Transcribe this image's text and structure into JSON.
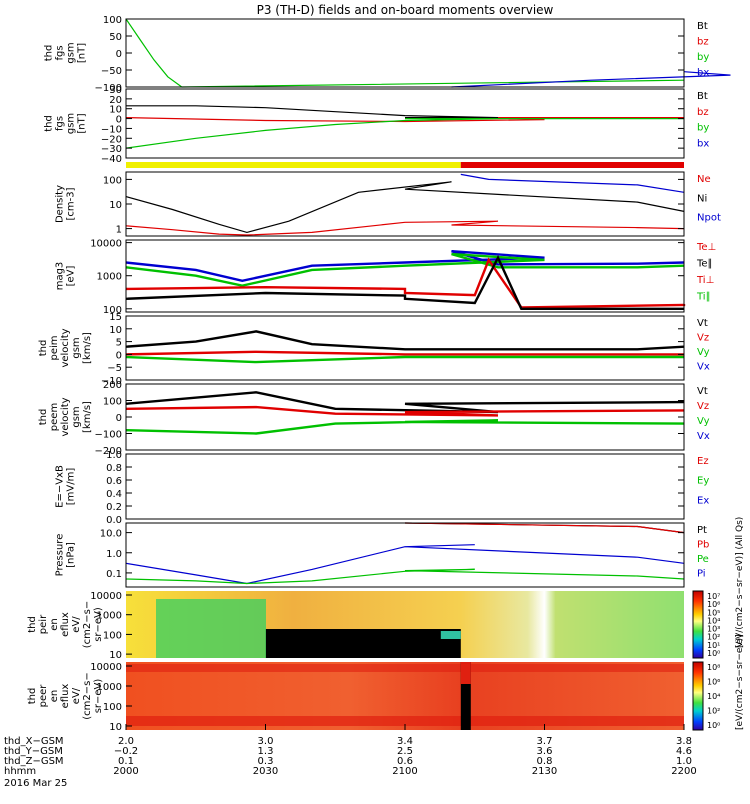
{
  "title": "P3 (TH-D) fields and on-board moments overview",
  "chart_data": [
    {
      "type": "line",
      "panel": "fgs_gsm",
      "ylabel": [
        "thd",
        "fgs",
        "gsm",
        "[nT]"
      ],
      "yticks": [
        "100",
        "50",
        "0",
        "−50",
        "−100"
      ],
      "ylim": [
        -100,
        100
      ],
      "legend": [
        {
          "label": "Bt",
          "color": "#000000"
        },
        {
          "label": "bz",
          "color": "#e00000"
        },
        {
          "label": "by",
          "color": "#00c000"
        },
        {
          "label": "bx",
          "color": "#0000d0"
        }
      ],
      "series": [
        {
          "color": "#00c000",
          "x": [
            2000,
            2003,
            2006,
            2009,
            2012,
            2200
          ],
          "y": [
            100,
            40,
            -20,
            -70,
            -100,
            -80
          ]
        },
        {
          "color": "#0000d0",
          "x": [
            2110,
            2140,
            2170,
            2200
          ],
          "y": [
            -100,
            -80,
            -65,
            -55
          ]
        }
      ]
    },
    {
      "type": "line",
      "panel": "fgs_gsm_zoom",
      "ylabel": [
        "thd",
        "fgs",
        "gsm",
        "[nT]"
      ],
      "yticks": [
        "30",
        "20",
        "10",
        "0",
        "−10",
        "−20",
        "−30",
        "−40"
      ],
      "ylim": [
        -40,
        30
      ],
      "legend": [
        {
          "label": "Bt",
          "color": "#000000"
        },
        {
          "label": "bz",
          "color": "#e00000"
        },
        {
          "label": "by",
          "color": "#00c000"
        },
        {
          "label": "bx",
          "color": "#0000d0"
        }
      ],
      "series": [
        {
          "color": "#000000",
          "x": [
            2000,
            2015,
            2030,
            2045,
            2060,
            2080,
            2100,
            2150,
            2200
          ],
          "y": [
            13,
            13,
            11,
            7,
            3,
            1,
            1,
            1,
            1
          ]
        },
        {
          "color": "#e00000",
          "x": [
            2000,
            2030,
            2060,
            2090,
            2120,
            2160,
            2200
          ],
          "y": [
            1,
            -2,
            -3,
            -1,
            1,
            1,
            1
          ]
        },
        {
          "color": "#00c000",
          "x": [
            2000,
            2015,
            2030,
            2045,
            2060,
            2080,
            2100,
            2150,
            2200
          ],
          "y": [
            -30,
            -20,
            -12,
            -6,
            -2,
            0,
            0,
            0,
            0
          ]
        }
      ]
    },
    {
      "type": "line",
      "panel": "density",
      "ylabel": [
        "Density",
        "[cm-3]"
      ],
      "yticks": [
        "100",
        "10",
        "1"
      ],
      "ylim": [
        0.5,
        200
      ],
      "yscale": "log",
      "legend": [
        {
          "label": "Ne",
          "color": "#e00000"
        },
        {
          "label": "Ni",
          "color": "#000000"
        },
        {
          "label": "Npot",
          "color": "#0000d0"
        }
      ],
      "series": [
        {
          "color": "#000000",
          "x": [
            2000,
            2010,
            2020,
            2026,
            2035,
            2050,
            2070,
            2100,
            2150,
            2200
          ],
          "y": [
            20,
            6,
            1.5,
            0.7,
            2,
            30,
            80,
            40,
            12,
            5
          ]
        },
        {
          "color": "#e00000",
          "x": [
            2000,
            2010,
            2020,
            2026,
            2040,
            2060,
            2080,
            2110,
            2150,
            2200
          ],
          "y": [
            1.3,
            0.9,
            0.6,
            0.55,
            0.7,
            1.8,
            2.0,
            1.4,
            1.1,
            1.0
          ]
        },
        {
          "color": "#0000d0",
          "x": [
            2112,
            2118,
            2150,
            2200
          ],
          "y": [
            160,
            100,
            60,
            30
          ]
        }
      ]
    },
    {
      "type": "line",
      "panel": "moments_temperature",
      "ylabel": [
        "mag3",
        "[eV]"
      ],
      "yticks": [
        "10000",
        "1000",
        "100"
      ],
      "ylim": [
        80,
        12000
      ],
      "yscale": "log",
      "legend": [
        {
          "label": "Te⊥",
          "color": "#e00000"
        },
        {
          "label": "Te∥",
          "color": "#000000"
        },
        {
          "label": "Ti⊥",
          "color": "#e00000"
        },
        {
          "label": "Ti∥",
          "color": "#00c000"
        }
      ],
      "series": [
        {
          "color": "#0000d0",
          "x": [
            2000,
            2015,
            2025,
            2040,
            2060,
            2090,
            2110,
            2120,
            2150,
            2200
          ],
          "y": [
            2500,
            1500,
            700,
            2000,
            2500,
            3500,
            5500,
            2200,
            2300,
            2500
          ]
        },
        {
          "color": "#00c000",
          "x": [
            2000,
            2015,
            2025,
            2040,
            2060,
            2090,
            2110,
            2120,
            2150,
            2200
          ],
          "y": [
            1800,
            1000,
            500,
            1500,
            2000,
            3000,
            4500,
            1800,
            1800,
            2000
          ]
        },
        {
          "color": "#e00000",
          "x": [
            2000,
            2030,
            2060,
            2100,
            2115,
            2118,
            2125,
            2160,
            2200
          ],
          "y": [
            400,
            450,
            400,
            300,
            260,
            3000,
            110,
            130,
            140
          ]
        },
        {
          "color": "#000000",
          "x": [
            2000,
            2030,
            2060,
            2100,
            2115,
            2120,
            2125,
            2160,
            2200
          ],
          "y": [
            200,
            300,
            250,
            200,
            150,
            3500,
            100,
            100,
            100
          ]
        }
      ]
    },
    {
      "type": "line",
      "panel": "peim_velocity",
      "ylabel": [
        "thd",
        "peim",
        "velocity",
        "gsm",
        "[km/s]"
      ],
      "yticks": [
        "15",
        "10",
        "5",
        "0",
        "−5",
        "−10"
      ],
      "ylim": [
        -10,
        15
      ],
      "legend": [
        {
          "label": "Vt",
          "color": "#000000"
        },
        {
          "label": "Vz",
          "color": "#e00000"
        },
        {
          "label": "Vy",
          "color": "#00c000"
        },
        {
          "label": "Vx",
          "color": "#0000d0"
        }
      ],
      "series": [
        {
          "color": "#000000",
          "x": [
            2000,
            2015,
            2028,
            2040,
            2060,
            2100,
            2150,
            2200
          ],
          "y": [
            3,
            5,
            9,
            4,
            2,
            2,
            2,
            3
          ]
        },
        {
          "color": "#e00000",
          "x": [
            2000,
            2028,
            2060,
            2200
          ],
          "y": [
            0,
            1,
            0,
            0
          ]
        },
        {
          "color": "#00c000",
          "x": [
            2000,
            2028,
            2060,
            2200
          ],
          "y": [
            -1,
            -3,
            -1,
            -1
          ]
        }
      ]
    },
    {
      "type": "line",
      "panel": "peem_velocity",
      "ylabel": [
        "thd",
        "peem",
        "velocity",
        "gsm",
        "[km/s]"
      ],
      "yticks": [
        "200",
        "100",
        "0",
        "−100",
        "−200"
      ],
      "ylim": [
        -200,
        200
      ],
      "legend": [
        {
          "label": "Vt",
          "color": "#000000"
        },
        {
          "label": "Vz",
          "color": "#e00000"
        },
        {
          "label": "Vy",
          "color": "#00c000"
        },
        {
          "label": "Vx",
          "color": "#0000d0"
        }
      ],
      "series": [
        {
          "color": "#000000",
          "x": [
            2000,
            2028,
            2045,
            2080,
            2100,
            2200
          ],
          "y": [
            80,
            150,
            50,
            30,
            80,
            90
          ]
        },
        {
          "color": "#e00000",
          "x": [
            2000,
            2028,
            2045,
            2080,
            2100,
            2200
          ],
          "y": [
            50,
            60,
            20,
            10,
            30,
            40
          ]
        },
        {
          "color": "#00c000",
          "x": [
            2000,
            2028,
            2045,
            2080,
            2100,
            2200
          ],
          "y": [
            -80,
            -100,
            -40,
            -20,
            -30,
            -40
          ]
        }
      ]
    },
    {
      "type": "line",
      "panel": "efield",
      "ylabel": [
        "E=−VxB",
        "[mV/m]"
      ],
      "yticks": [
        "1.0",
        "0.8",
        "0.6",
        "0.4",
        "0.2",
        "0.0"
      ],
      "ylim": [
        0,
        1
      ],
      "legend": [
        {
          "label": "Ez",
          "color": "#e00000"
        },
        {
          "label": "Ey",
          "color": "#00c000"
        },
        {
          "label": "Ex",
          "color": "#0000d0"
        }
      ],
      "series": []
    },
    {
      "type": "line",
      "panel": "pressure",
      "ylabel": [
        "Pressure",
        "[nPa]"
      ],
      "yticks": [
        "10.0",
        "1.0",
        "0.1"
      ],
      "ylim": [
        0.02,
        30
      ],
      "yscale": "log",
      "legend": [
        {
          "label": "Pt",
          "color": "#000000"
        },
        {
          "label": "Pb",
          "color": "#e00000"
        },
        {
          "label": "Pe",
          "color": "#00c000"
        },
        {
          "label": "Pi",
          "color": "#0000d0"
        }
      ],
      "series": [
        {
          "color": "#0000d0",
          "x": [
            2000,
            2015,
            2026,
            2040,
            2060,
            2075,
            2100,
            2150,
            2200
          ],
          "y": [
            0.3,
            0.08,
            0.03,
            0.15,
            2.0,
            2.5,
            2.0,
            0.6,
            0.3
          ]
        },
        {
          "color": "#00c000",
          "x": [
            2000,
            2015,
            2026,
            2040,
            2060,
            2075,
            2100,
            2150,
            2200
          ],
          "y": [
            0.05,
            0.04,
            0.03,
            0.04,
            0.12,
            0.15,
            0.13,
            0.07,
            0.05
          ]
        },
        {
          "color": "#000000",
          "x": [
            2100,
            2150,
            2200
          ],
          "y": [
            30,
            20,
            10
          ]
        },
        {
          "color": "#e00000",
          "x": [
            2100,
            2150,
            2200
          ],
          "y": [
            30,
            20,
            10
          ]
        }
      ]
    },
    {
      "type": "heatmap",
      "panel": "peir_en_eflux",
      "ylabel": [
        "thd",
        "peir",
        "en",
        "eflux",
        "eV/",
        "(cm2−s−",
        "sr−eV)"
      ],
      "yticks": [
        "10000",
        "1000",
        "100",
        "10"
      ],
      "yscale": "log",
      "colorbar_ticks": [
        "10⁷",
        "10⁶",
        "10⁵",
        "10⁴",
        "10³",
        "10²",
        "10¹",
        "10⁰"
      ],
      "colorbar_label": "[eV/(cm2−s−sr−eV)] (All Qs)"
    },
    {
      "type": "heatmap",
      "panel": "peer_en_eflux",
      "ylabel": [
        "thd",
        "peer",
        "en",
        "eflux",
        "eV/",
        "(cm2−s−",
        "sr−eV)"
      ],
      "yticks": [
        "10000",
        "1000",
        "100",
        "10"
      ],
      "yscale": "log",
      "colorbar_ticks": [
        "10⁸",
        "10⁶",
        "10⁴",
        "10²",
        "10⁰"
      ],
      "colorbar_label": "[eV/(cm2−s−sr−eV)]"
    }
  ],
  "bar_segments": [
    {
      "color": "#f0f000",
      "x0": 2000,
      "x1": 2112
    },
    {
      "color": "#e00000",
      "x0": 2112,
      "x1": 2200
    }
  ],
  "x_axis": {
    "rows": [
      {
        "label": "thd_X−GSM",
        "values": [
          "2.0",
          "3.0",
          "3.4",
          "3.7",
          "3.8"
        ]
      },
      {
        "label": "thd_Y−GSM",
        "values": [
          "−0.2",
          "1.3",
          "2.5",
          "3.6",
          "4.6"
        ]
      },
      {
        "label": "thd_Z−GSM",
        "values": [
          "0.1",
          "0.3",
          "0.6",
          "0.8",
          "1.0"
        ]
      },
      {
        "label": "hhmm",
        "values": [
          "2000",
          "2030",
          "2100",
          "2130",
          "2200"
        ]
      }
    ],
    "date": "2016 Mar 25"
  }
}
